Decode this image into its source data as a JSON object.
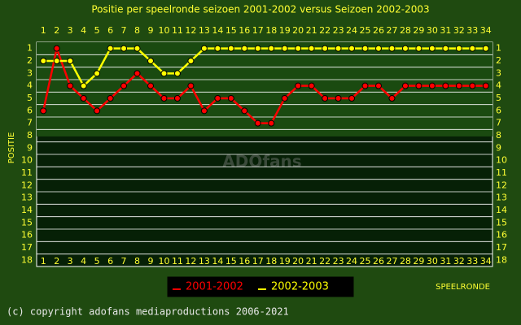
{
  "chart_data": {
    "type": "line",
    "title": "Positie per speelronde seizoen 2001-2002 versus Seizoen 2002-2003",
    "y_label": "POSITIE",
    "x_label": "SPEELRONDE",
    "watermark": "ADOfans",
    "footer": "(c) copyright adofans mediaproductions 2006-2021",
    "categories": [
      1,
      2,
      3,
      4,
      5,
      6,
      7,
      8,
      9,
      10,
      11,
      12,
      13,
      14,
      15,
      16,
      17,
      18,
      19,
      20,
      21,
      22,
      23,
      24,
      25,
      26,
      27,
      28,
      29,
      30,
      31,
      32,
      33,
      34
    ],
    "ylim": [
      18.5,
      0.5
    ],
    "yticks": [
      1,
      2,
      3,
      4,
      5,
      6,
      7,
      8,
      9,
      10,
      11,
      12,
      13,
      14,
      15,
      16,
      17,
      18
    ],
    "grid": true,
    "series": [
      {
        "name": "2001-2002",
        "color": "#ff0000",
        "values": [
          6,
          1,
          4,
          5,
          6,
          5,
          4,
          3,
          4,
          5,
          5,
          4,
          6,
          5,
          5,
          6,
          7,
          7,
          5,
          4,
          4,
          5,
          5,
          5,
          4,
          4,
          5,
          4,
          4,
          4,
          4,
          4,
          4,
          4
        ]
      },
      {
        "name": "2002-2003",
        "color": "#ffff00",
        "values": [
          2,
          2,
          2,
          4,
          3,
          1,
          1,
          1,
          2,
          3,
          3,
          2,
          1,
          1,
          1,
          1,
          1,
          1,
          1,
          1,
          1,
          1,
          1,
          1,
          1,
          1,
          1,
          1,
          1,
          1,
          1,
          1,
          1,
          1
        ]
      }
    ]
  }
}
